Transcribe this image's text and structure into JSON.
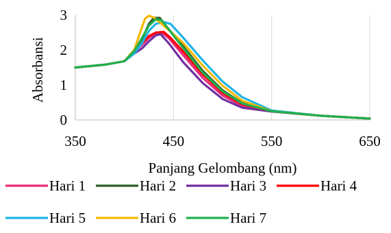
{
  "chart_data": {
    "type": "line",
    "title": "",
    "xlabel": "Panjang Gelombang (nm)",
    "ylabel": "Absorbansi",
    "xlim": [
      350,
      650
    ],
    "ylim": [
      0,
      3
    ],
    "x_ticks": [
      350,
      450,
      550,
      650
    ],
    "y_ticks": [
      0,
      1,
      2,
      3
    ],
    "grid": "vertical",
    "legend_position": "bottom",
    "series": [
      {
        "name": "Hari 1",
        "color": "#e8287a",
        "points": [
          [
            350,
            1.5
          ],
          [
            380,
            1.58
          ],
          [
            400,
            1.68
          ],
          [
            410,
            1.95
          ],
          [
            418,
            2.15
          ],
          [
            425,
            2.35
          ],
          [
            432,
            2.48
          ],
          [
            438,
            2.5
          ],
          [
            445,
            2.35
          ],
          [
            460,
            1.85
          ],
          [
            480,
            1.2
          ],
          [
            500,
            0.7
          ],
          [
            520,
            0.4
          ],
          [
            550,
            0.25
          ],
          [
            600,
            0.12
          ],
          [
            650,
            0.04
          ]
        ]
      },
      {
        "name": "Hari 2",
        "color": "#2e5a2a",
        "points": [
          [
            350,
            1.5
          ],
          [
            380,
            1.58
          ],
          [
            400,
            1.68
          ],
          [
            410,
            2.0
          ],
          [
            418,
            2.3
          ],
          [
            425,
            2.75
          ],
          [
            430,
            2.92
          ],
          [
            436,
            2.92
          ],
          [
            442,
            2.7
          ],
          [
            460,
            2.1
          ],
          [
            480,
            1.4
          ],
          [
            500,
            0.85
          ],
          [
            520,
            0.48
          ],
          [
            550,
            0.25
          ],
          [
            600,
            0.12
          ],
          [
            650,
            0.04
          ]
        ]
      },
      {
        "name": "Hari 3",
        "color": "#7030a0",
        "points": [
          [
            350,
            1.5
          ],
          [
            380,
            1.58
          ],
          [
            400,
            1.68
          ],
          [
            410,
            1.9
          ],
          [
            418,
            2.05
          ],
          [
            425,
            2.25
          ],
          [
            432,
            2.42
          ],
          [
            437,
            2.45
          ],
          [
            445,
            2.2
          ],
          [
            460,
            1.65
          ],
          [
            480,
            1.05
          ],
          [
            500,
            0.6
          ],
          [
            520,
            0.35
          ],
          [
            550,
            0.24
          ],
          [
            600,
            0.12
          ],
          [
            650,
            0.04
          ]
        ]
      },
      {
        "name": "Hari 4",
        "color": "#ff0000",
        "points": [
          [
            350,
            1.5
          ],
          [
            380,
            1.58
          ],
          [
            400,
            1.68
          ],
          [
            410,
            1.95
          ],
          [
            418,
            2.2
          ],
          [
            425,
            2.4
          ],
          [
            432,
            2.5
          ],
          [
            440,
            2.52
          ],
          [
            447,
            2.35
          ],
          [
            460,
            1.95
          ],
          [
            480,
            1.3
          ],
          [
            500,
            0.78
          ],
          [
            520,
            0.45
          ],
          [
            550,
            0.25
          ],
          [
            600,
            0.12
          ],
          [
            650,
            0.04
          ]
        ]
      },
      {
        "name": "Hari 5",
        "color": "#1eb4e6",
        "points": [
          [
            350,
            1.5
          ],
          [
            380,
            1.58
          ],
          [
            400,
            1.68
          ],
          [
            410,
            1.9
          ],
          [
            418,
            2.2
          ],
          [
            425,
            2.55
          ],
          [
            432,
            2.75
          ],
          [
            440,
            2.8
          ],
          [
            447,
            2.75
          ],
          [
            460,
            2.35
          ],
          [
            480,
            1.7
          ],
          [
            500,
            1.1
          ],
          [
            520,
            0.65
          ],
          [
            550,
            0.27
          ],
          [
            600,
            0.12
          ],
          [
            650,
            0.04
          ]
        ]
      },
      {
        "name": "Hari 6",
        "color": "#f5b800",
        "points": [
          [
            350,
            1.5
          ],
          [
            380,
            1.58
          ],
          [
            400,
            1.68
          ],
          [
            410,
            2.0
          ],
          [
            416,
            2.5
          ],
          [
            421,
            2.9
          ],
          [
            425,
            2.98
          ],
          [
            430,
            2.93
          ],
          [
            438,
            2.75
          ],
          [
            460,
            2.2
          ],
          [
            480,
            1.55
          ],
          [
            500,
            0.98
          ],
          [
            520,
            0.55
          ],
          [
            550,
            0.25
          ],
          [
            600,
            0.12
          ],
          [
            650,
            0.04
          ]
        ]
      },
      {
        "name": "Hari 7",
        "color": "#1fb04e",
        "points": [
          [
            350,
            1.5
          ],
          [
            380,
            1.58
          ],
          [
            400,
            1.68
          ],
          [
            410,
            1.97
          ],
          [
            418,
            2.35
          ],
          [
            425,
            2.7
          ],
          [
            432,
            2.88
          ],
          [
            438,
            2.85
          ],
          [
            445,
            2.6
          ],
          [
            460,
            2.05
          ],
          [
            480,
            1.35
          ],
          [
            500,
            0.82
          ],
          [
            520,
            0.47
          ],
          [
            550,
            0.25
          ],
          [
            600,
            0.12
          ],
          [
            650,
            0.04
          ]
        ]
      }
    ]
  }
}
